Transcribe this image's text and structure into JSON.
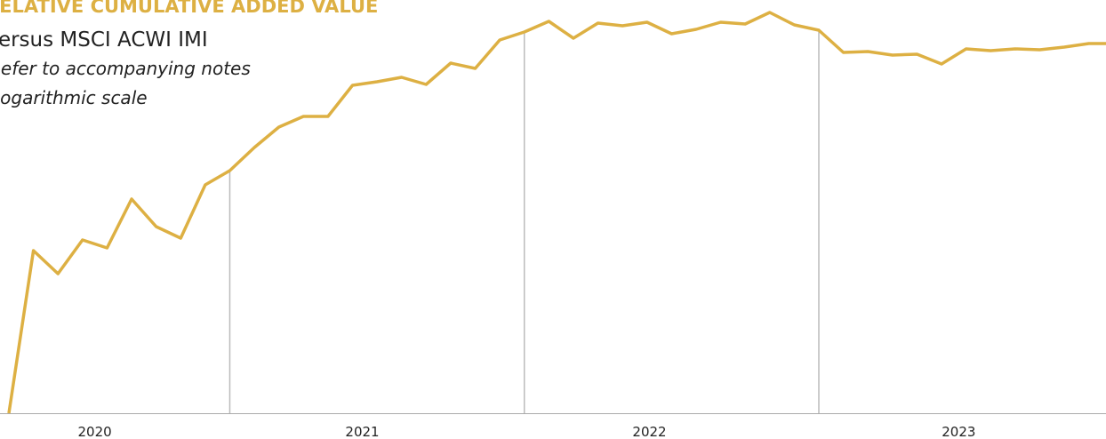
{
  "chart_data": {
    "type": "line",
    "title": "RELATIVE CUMULATIVE ADDED VALUE",
    "subtitle": "Versus MSCI ACWI IMI",
    "notes": [
      "Refer to accompanying notes",
      "Logarithmic scale"
    ],
    "x": [
      0,
      1,
      2,
      3,
      4,
      5,
      6,
      7,
      8,
      9,
      10,
      11,
      12,
      13,
      14,
      15,
      16,
      17,
      18,
      19,
      20,
      21,
      22,
      23,
      24,
      25,
      26,
      27,
      28,
      29,
      30,
      31,
      32,
      33,
      34,
      35,
      36,
      37,
      38,
      39,
      40,
      41,
      42,
      43,
      44,
      45
    ],
    "series": [
      {
        "name": "Relative cumulative added value",
        "color": "#ddb043",
        "values": [
          0,
          183,
          157,
          195,
          186,
          241,
          210,
          197,
          257,
          273,
          299,
          322,
          334,
          334,
          369,
          373,
          378,
          370,
          394,
          388,
          420,
          429,
          441,
          422,
          439,
          436,
          440,
          427,
          432,
          440,
          438,
          451,
          437,
          431,
          406,
          407,
          403,
          404,
          393,
          410,
          408,
          410,
          409,
          412,
          416,
          416
        ]
      }
    ],
    "xlim": [
      0,
      44.7
    ],
    "ylim": [
      0,
      465
    ],
    "xticks": [
      {
        "value": 3.5,
        "label": "2020"
      },
      {
        "value": 14.4,
        "label": "2021"
      },
      {
        "value": 26.1,
        "label": "2022"
      },
      {
        "value": 38.7,
        "label": "2023"
      }
    ],
    "xgrid": [
      9,
      21,
      33
    ]
  }
}
